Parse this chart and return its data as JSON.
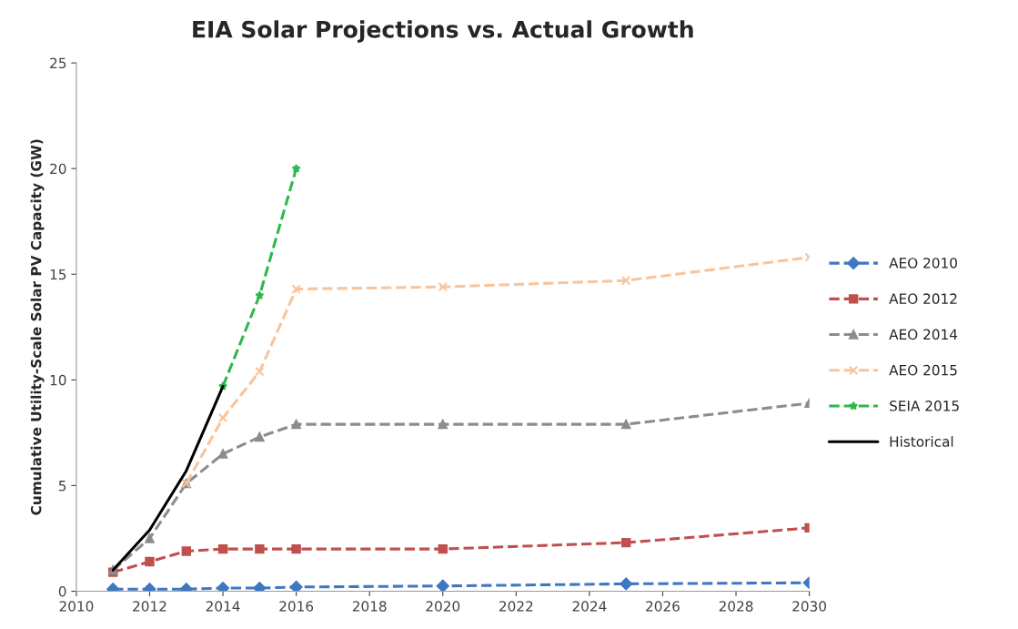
{
  "chart_data": {
    "type": "line",
    "title": "EIA Solar Projections vs. Actual Growth",
    "ylabel": "Cumulative Utility-Scale Solar PV Capacity (GW)",
    "xlim": [
      2010,
      2030
    ],
    "xticks": [
      2010,
      2012,
      2014,
      2016,
      2018,
      2020,
      2022,
      2024,
      2026,
      2028,
      2030
    ],
    "ylim": [
      0,
      25
    ],
    "yticks": [
      0,
      5,
      10,
      15,
      20,
      25
    ],
    "grid": false,
    "legend": "right",
    "series": [
      {
        "name": "AEO 2010",
        "color": "#3f78c2",
        "marker": "diamond",
        "line_style": "dashed",
        "x": [
          2011,
          2012,
          2013,
          2014,
          2015,
          2016,
          2020,
          2025,
          2030
        ],
        "values": [
          0.1,
          0.1,
          0.1,
          0.15,
          0.15,
          0.2,
          0.25,
          0.35,
          0.4
        ]
      },
      {
        "name": "AEO 2012",
        "color": "#c0504d",
        "marker": "square",
        "line_style": "dashed",
        "x": [
          2011,
          2012,
          2013,
          2014,
          2015,
          2016,
          2020,
          2025,
          2030
        ],
        "values": [
          0.9,
          1.4,
          1.9,
          2.0,
          2.0,
          2.0,
          2.0,
          2.3,
          3.0
        ]
      },
      {
        "name": "AEO 2014",
        "color": "#8c8c8c",
        "marker": "triangle",
        "line_style": "dashed",
        "x": [
          2011,
          2012,
          2013,
          2014,
          2015,
          2016,
          2020,
          2025,
          2030
        ],
        "values": [
          1.0,
          2.5,
          5.1,
          6.5,
          7.3,
          7.9,
          7.9,
          7.9,
          8.9
        ]
      },
      {
        "name": "AEO 2015",
        "color": "#f8c49c",
        "marker": "cross",
        "line_style": "dashed",
        "x": [
          2013,
          2014,
          2015,
          2016,
          2020,
          2025,
          2030
        ],
        "values": [
          5.1,
          8.2,
          10.4,
          14.3,
          14.4,
          14.7,
          15.8
        ]
      },
      {
        "name": "SEIA 2015",
        "color": "#2db84b",
        "marker": "star",
        "line_style": "dashed",
        "x": [
          2014,
          2015,
          2016
        ],
        "values": [
          9.7,
          14.0,
          20.0
        ]
      },
      {
        "name": "Historical",
        "color": "#000000",
        "marker": "none",
        "line_style": "solid",
        "x": [
          2011,
          2012,
          2013,
          2014
        ],
        "values": [
          1.0,
          2.9,
          5.7,
          9.7
        ]
      }
    ]
  }
}
